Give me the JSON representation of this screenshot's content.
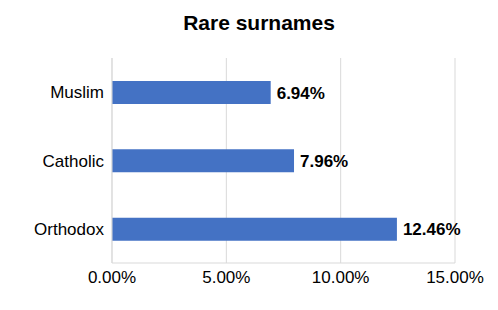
{
  "chart_data": {
    "type": "bar",
    "title": "Rare surnames",
    "orientation": "horizontal",
    "categories": [
      "Muslim",
      "Catholic",
      "Orthodox"
    ],
    "values": [
      6.94,
      7.96,
      12.46
    ],
    "value_labels": [
      "6.94%",
      "7.96%",
      "12.46%"
    ],
    "data_labels": true,
    "color": "#4472c4",
    "xlim": [
      0,
      15
    ],
    "xticks": [
      {
        "value": 0,
        "label": "0.00%"
      },
      {
        "value": 5,
        "label": "5.00%"
      },
      {
        "value": 10,
        "label": "10.00%"
      },
      {
        "value": 15,
        "label": "15.00%"
      }
    ],
    "grid": true
  }
}
